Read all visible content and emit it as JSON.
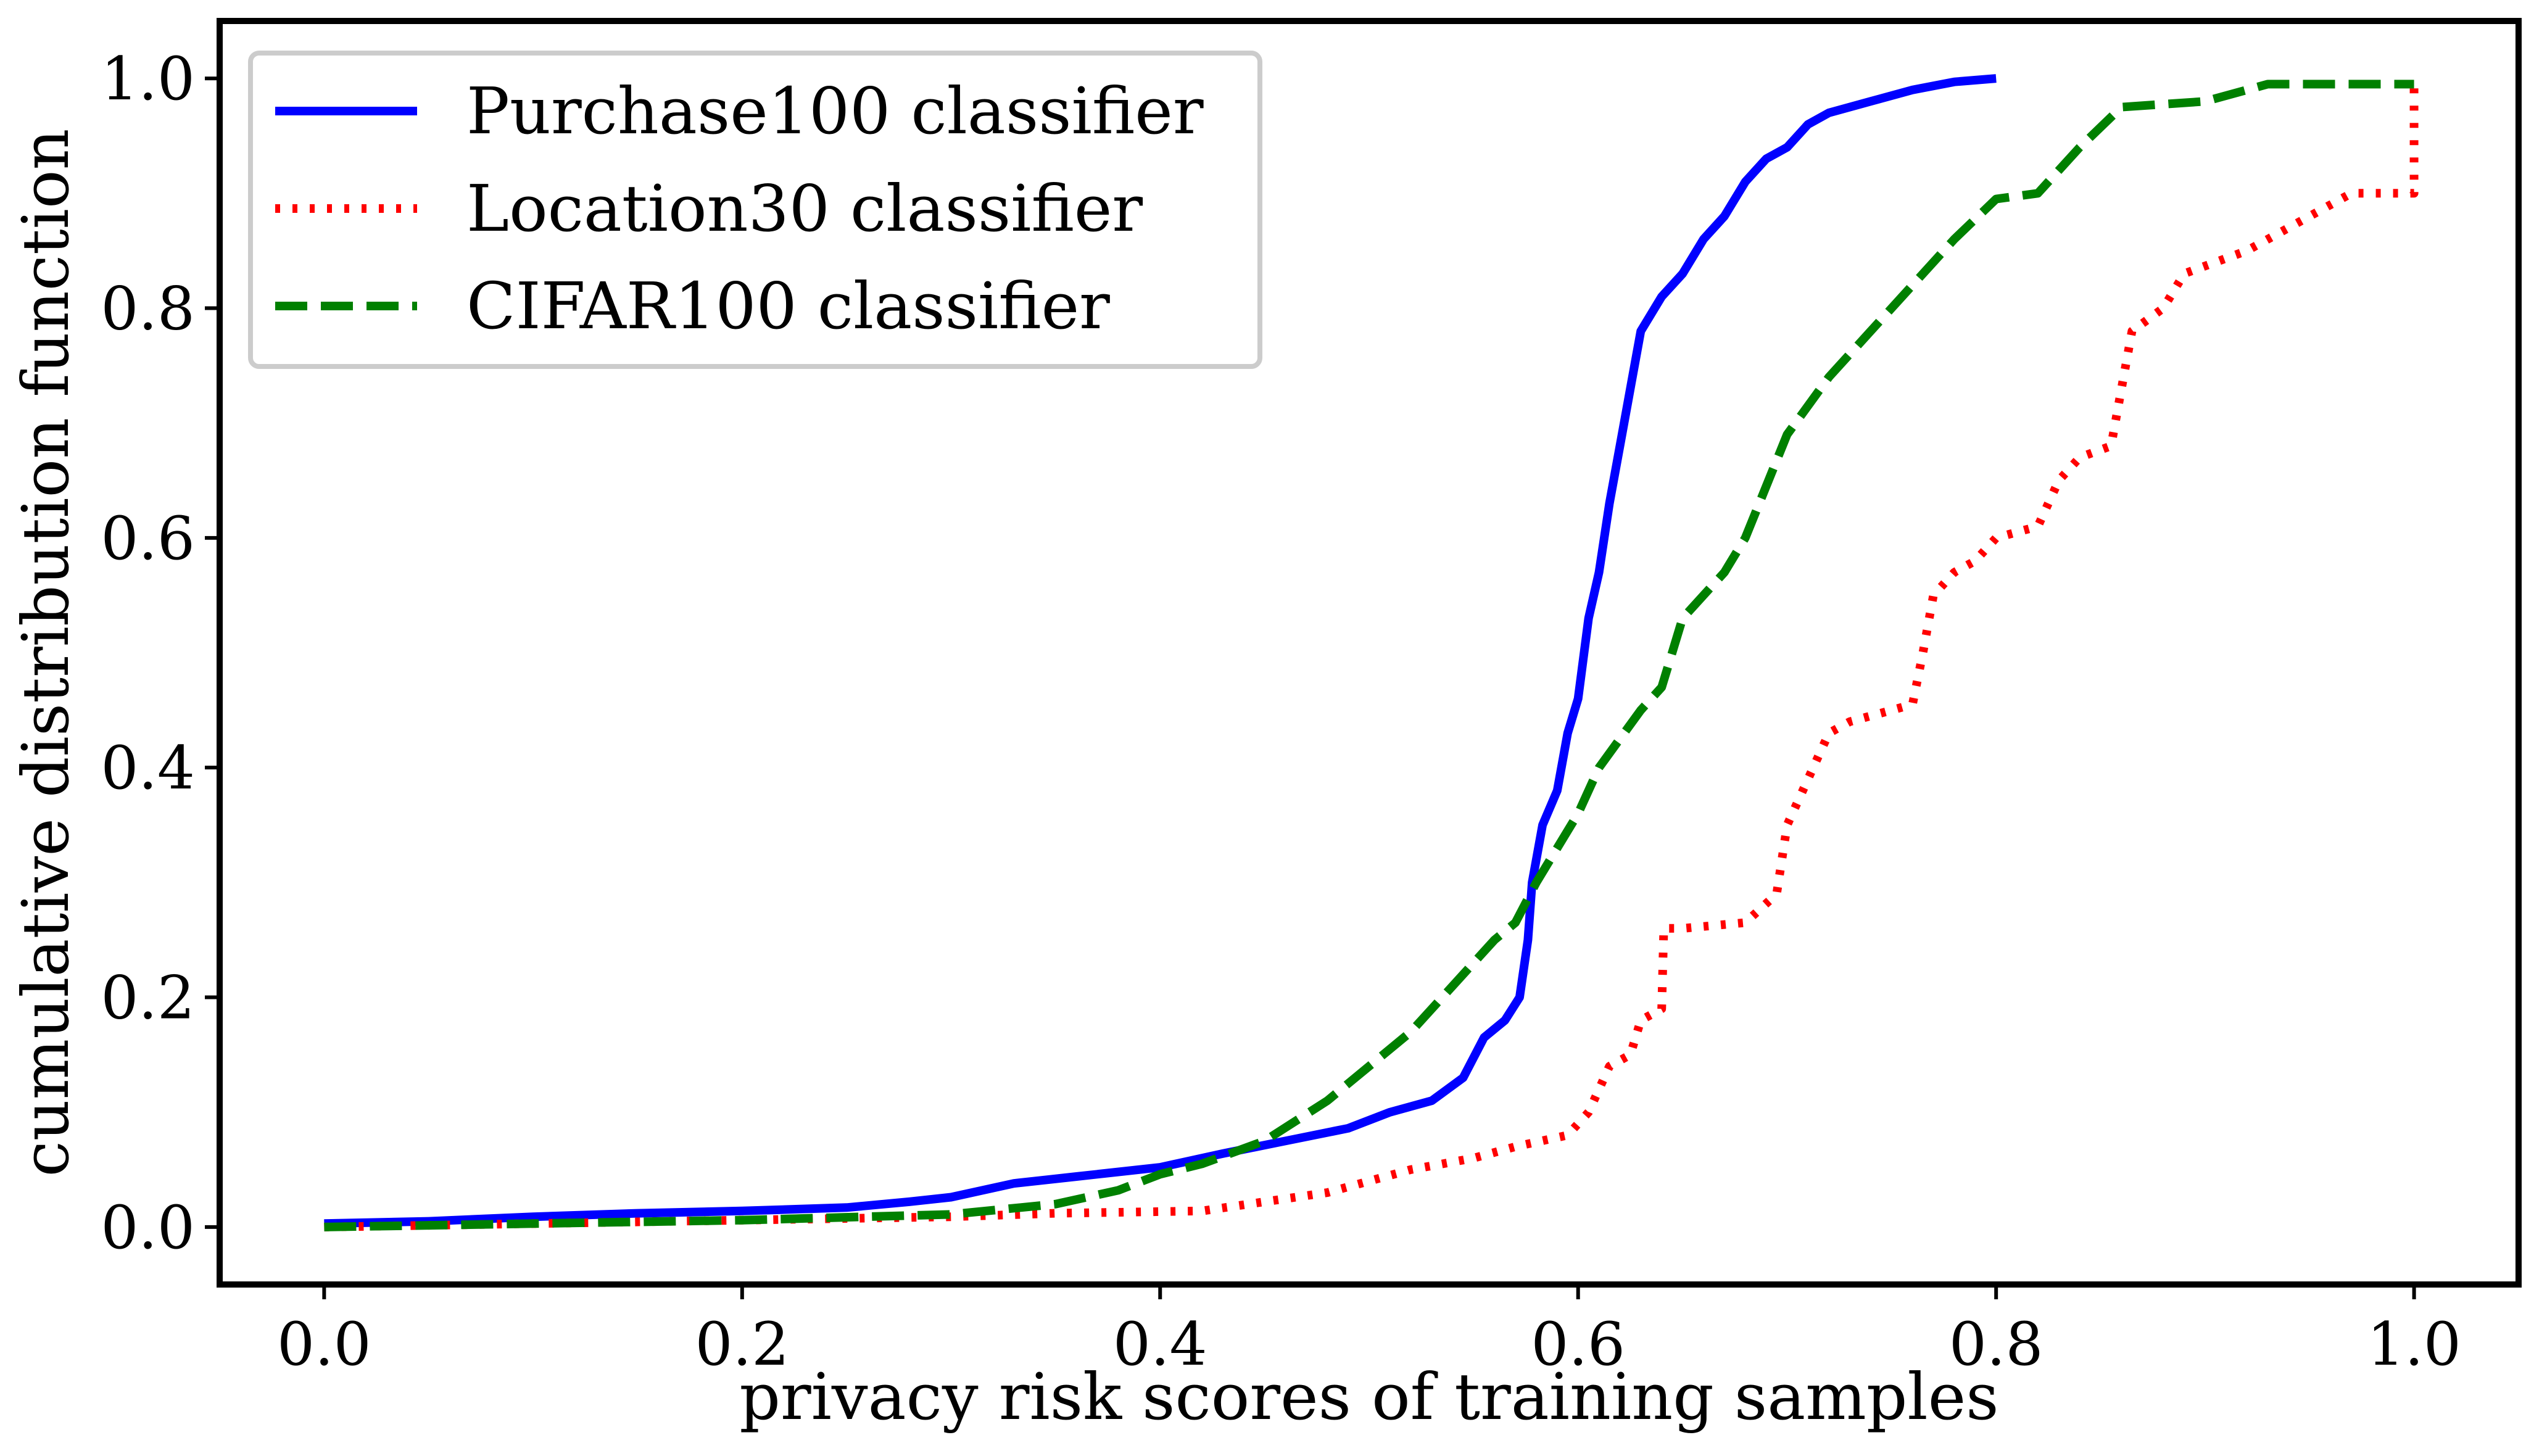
{
  "chart_data": {
    "type": "line",
    "title": "",
    "xlabel": "privacy risk scores of training samples",
    "ylabel": "cumulative distribution function",
    "xlim": [
      -0.05,
      1.05
    ],
    "ylim": [
      -0.05,
      1.05
    ],
    "xticks": [
      "0.0",
      "0.2",
      "0.4",
      "0.6",
      "0.8",
      "1.0"
    ],
    "yticks": [
      "0.0",
      "0.2",
      "0.4",
      "0.6",
      "0.8",
      "1.0"
    ],
    "grid": false,
    "legend_position": "top-left",
    "series": [
      {
        "name": "Purchase100 classifier",
        "color": "#0000ff",
        "style": "solid",
        "points": [
          [
            0.0,
            0.003
          ],
          [
            0.05,
            0.005
          ],
          [
            0.1,
            0.009
          ],
          [
            0.15,
            0.012
          ],
          [
            0.2,
            0.014
          ],
          [
            0.25,
            0.017
          ],
          [
            0.28,
            0.022
          ],
          [
            0.3,
            0.026
          ],
          [
            0.33,
            0.038
          ],
          [
            0.36,
            0.044
          ],
          [
            0.4,
            0.052
          ],
          [
            0.43,
            0.064
          ],
          [
            0.46,
            0.075
          ],
          [
            0.49,
            0.086
          ],
          [
            0.51,
            0.1
          ],
          [
            0.53,
            0.11
          ],
          [
            0.545,
            0.13
          ],
          [
            0.555,
            0.165
          ],
          [
            0.565,
            0.18
          ],
          [
            0.572,
            0.2
          ],
          [
            0.576,
            0.25
          ],
          [
            0.578,
            0.3
          ],
          [
            0.583,
            0.35
          ],
          [
            0.59,
            0.38
          ],
          [
            0.595,
            0.43
          ],
          [
            0.6,
            0.46
          ],
          [
            0.605,
            0.53
          ],
          [
            0.61,
            0.57
          ],
          [
            0.615,
            0.63
          ],
          [
            0.62,
            0.68
          ],
          [
            0.625,
            0.73
          ],
          [
            0.63,
            0.78
          ],
          [
            0.64,
            0.81
          ],
          [
            0.65,
            0.83
          ],
          [
            0.66,
            0.86
          ],
          [
            0.67,
            0.88
          ],
          [
            0.68,
            0.91
          ],
          [
            0.69,
            0.93
          ],
          [
            0.7,
            0.94
          ],
          [
            0.71,
            0.96
          ],
          [
            0.72,
            0.97
          ],
          [
            0.74,
            0.98
          ],
          [
            0.76,
            0.99
          ],
          [
            0.78,
            0.997
          ],
          [
            0.8,
            1.0
          ]
        ]
      },
      {
        "name": "Location30 classifier",
        "color": "#ff0000",
        "style": "dotted",
        "points": [
          [
            0.0,
            0.0
          ],
          [
            0.1,
            0.003
          ],
          [
            0.2,
            0.006
          ],
          [
            0.3,
            0.009
          ],
          [
            0.35,
            0.012
          ],
          [
            0.42,
            0.014
          ],
          [
            0.45,
            0.022
          ],
          [
            0.48,
            0.03
          ],
          [
            0.5,
            0.04
          ],
          [
            0.52,
            0.05
          ],
          [
            0.55,
            0.06
          ],
          [
            0.57,
            0.07
          ],
          [
            0.595,
            0.08
          ],
          [
            0.605,
            0.1
          ],
          [
            0.615,
            0.14
          ],
          [
            0.625,
            0.15
          ],
          [
            0.63,
            0.18
          ],
          [
            0.64,
            0.19
          ],
          [
            0.641,
            0.26
          ],
          [
            0.65,
            0.26
          ],
          [
            0.68,
            0.265
          ],
          [
            0.695,
            0.29
          ],
          [
            0.7,
            0.35
          ],
          [
            0.71,
            0.39
          ],
          [
            0.72,
            0.43
          ],
          [
            0.73,
            0.44
          ],
          [
            0.76,
            0.455
          ],
          [
            0.765,
            0.5
          ],
          [
            0.77,
            0.55
          ],
          [
            0.78,
            0.57
          ],
          [
            0.79,
            0.58
          ],
          [
            0.8,
            0.6
          ],
          [
            0.82,
            0.61
          ],
          [
            0.83,
            0.65
          ],
          [
            0.84,
            0.67
          ],
          [
            0.855,
            0.68
          ],
          [
            0.86,
            0.73
          ],
          [
            0.865,
            0.78
          ],
          [
            0.88,
            0.8
          ],
          [
            0.89,
            0.83
          ],
          [
            0.92,
            0.85
          ],
          [
            0.95,
            0.88
          ],
          [
            0.97,
            0.9
          ],
          [
            1.0,
            0.9
          ],
          [
            1.0,
            1.0
          ]
        ]
      },
      {
        "name": "CIFAR100 classifier",
        "color": "#008000",
        "style": "dashed",
        "points": [
          [
            0.0,
            0.0
          ],
          [
            0.1,
            0.003
          ],
          [
            0.2,
            0.006
          ],
          [
            0.3,
            0.011
          ],
          [
            0.35,
            0.02
          ],
          [
            0.38,
            0.032
          ],
          [
            0.4,
            0.046
          ],
          [
            0.42,
            0.055
          ],
          [
            0.45,
            0.075
          ],
          [
            0.48,
            0.11
          ],
          [
            0.5,
            0.14
          ],
          [
            0.52,
            0.17
          ],
          [
            0.54,
            0.21
          ],
          [
            0.56,
            0.25
          ],
          [
            0.57,
            0.265
          ],
          [
            0.58,
            0.3
          ],
          [
            0.6,
            0.36
          ],
          [
            0.61,
            0.4
          ],
          [
            0.63,
            0.45
          ],
          [
            0.64,
            0.47
          ],
          [
            0.65,
            0.53
          ],
          [
            0.67,
            0.57
          ],
          [
            0.68,
            0.6
          ],
          [
            0.7,
            0.69
          ],
          [
            0.72,
            0.74
          ],
          [
            0.74,
            0.78
          ],
          [
            0.76,
            0.82
          ],
          [
            0.78,
            0.86
          ],
          [
            0.8,
            0.895
          ],
          [
            0.82,
            0.9
          ],
          [
            0.84,
            0.94
          ],
          [
            0.86,
            0.975
          ],
          [
            0.9,
            0.98
          ],
          [
            0.93,
            0.995
          ],
          [
            1.0,
            0.995
          ]
        ]
      }
    ]
  }
}
